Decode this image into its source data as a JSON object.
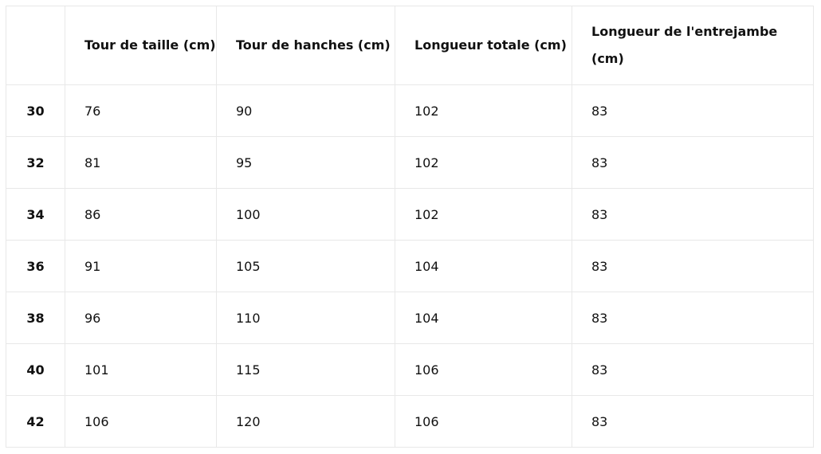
{
  "headers": [
    "",
    "Tour de taille (cm)",
    "Tour de hanches (cm)",
    "Longueur totale (cm)",
    "Longueur de l'entrejambe (cm)"
  ],
  "rows": [
    [
      "30",
      "76",
      "90",
      "102",
      "83"
    ],
    [
      "32",
      "81",
      "95",
      "102",
      "83"
    ],
    [
      "34",
      "86",
      "100",
      "102",
      "83"
    ],
    [
      "36",
      "91",
      "105",
      "104",
      "83"
    ],
    [
      "38",
      "96",
      "110",
      "104",
      "83"
    ],
    [
      "40",
      "101",
      "115",
      "106",
      "83"
    ],
    [
      "42",
      "106",
      "120",
      "106",
      "83"
    ]
  ]
}
